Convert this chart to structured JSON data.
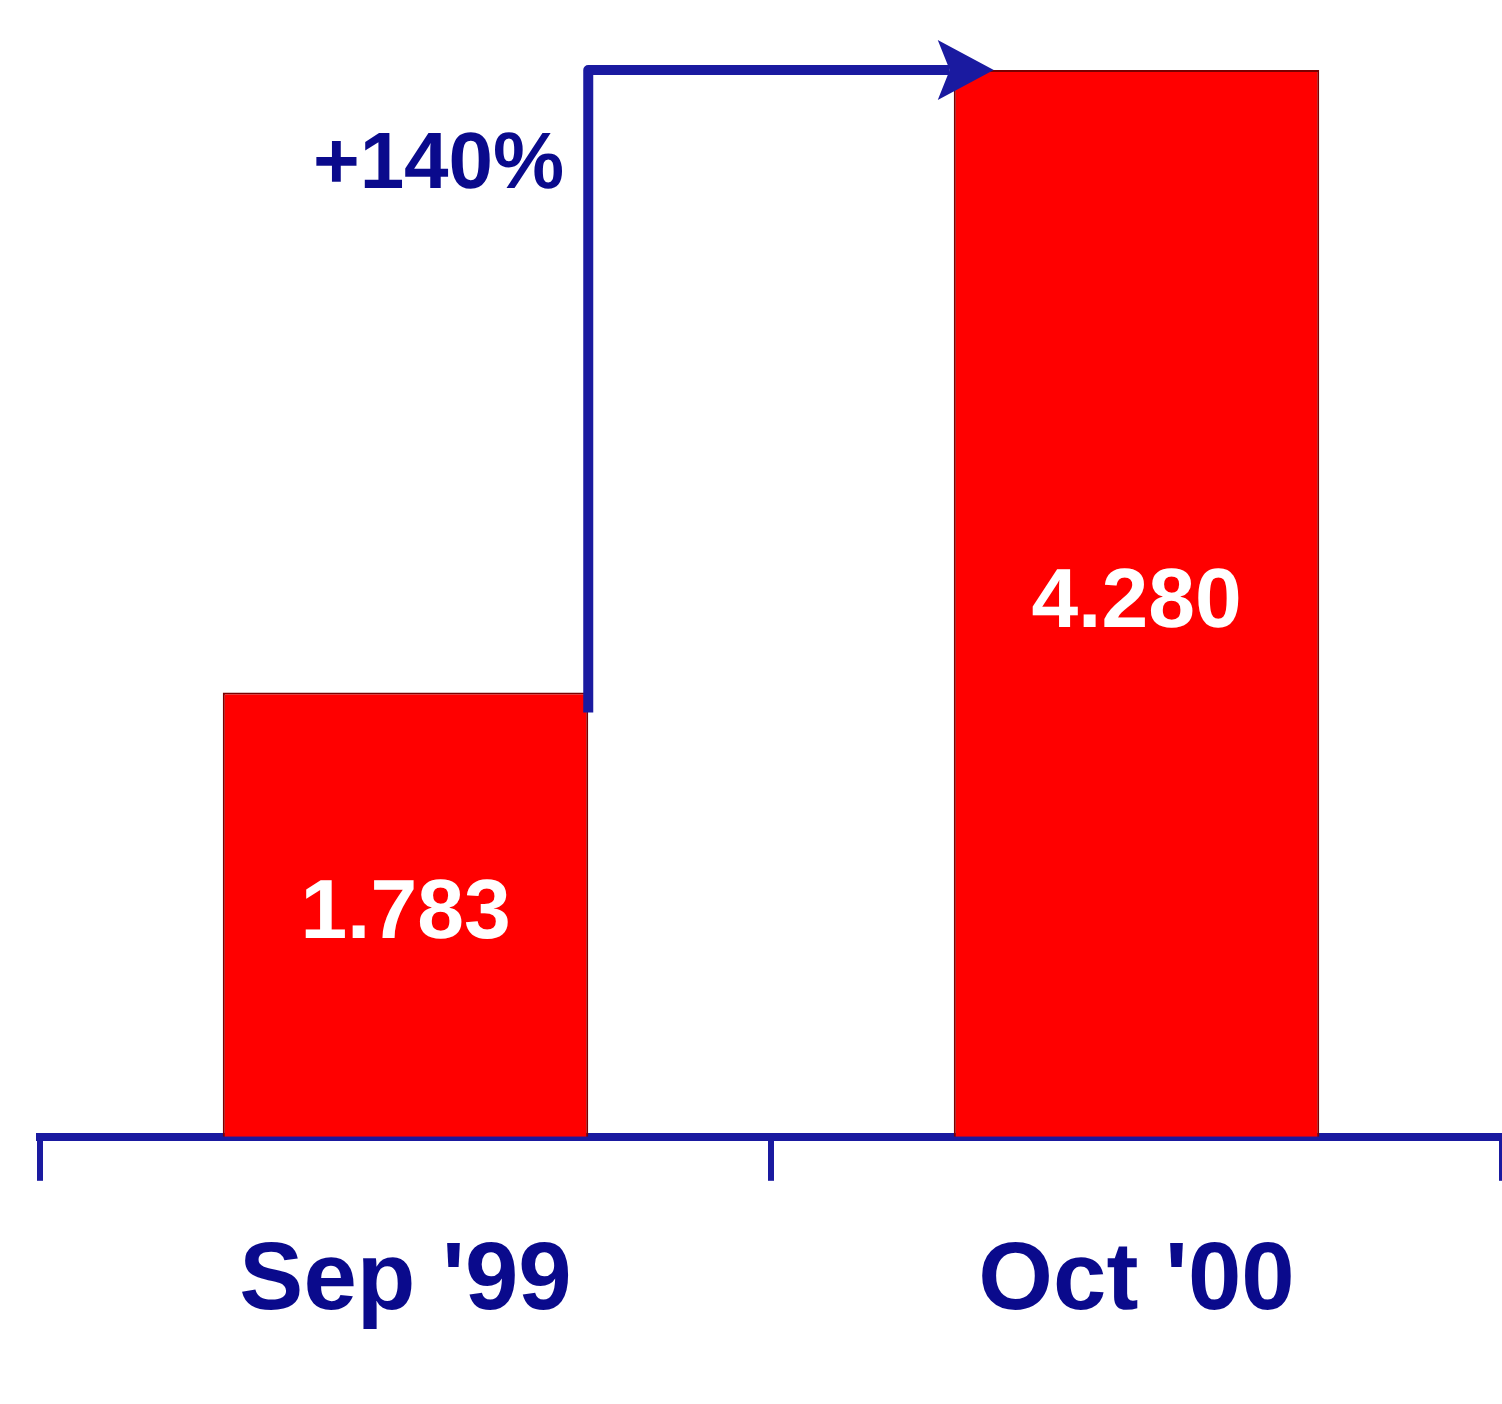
{
  "chart_data": {
    "type": "bar",
    "categories": [
      "Sep '99",
      "Oct '00"
    ],
    "values": [
      1.783,
      4.28
    ],
    "value_labels": [
      "1.783",
      "4.280"
    ],
    "color": "#ff0000",
    "annotations": [
      "+140%"
    ],
    "grid": false,
    "legend": false
  }
}
